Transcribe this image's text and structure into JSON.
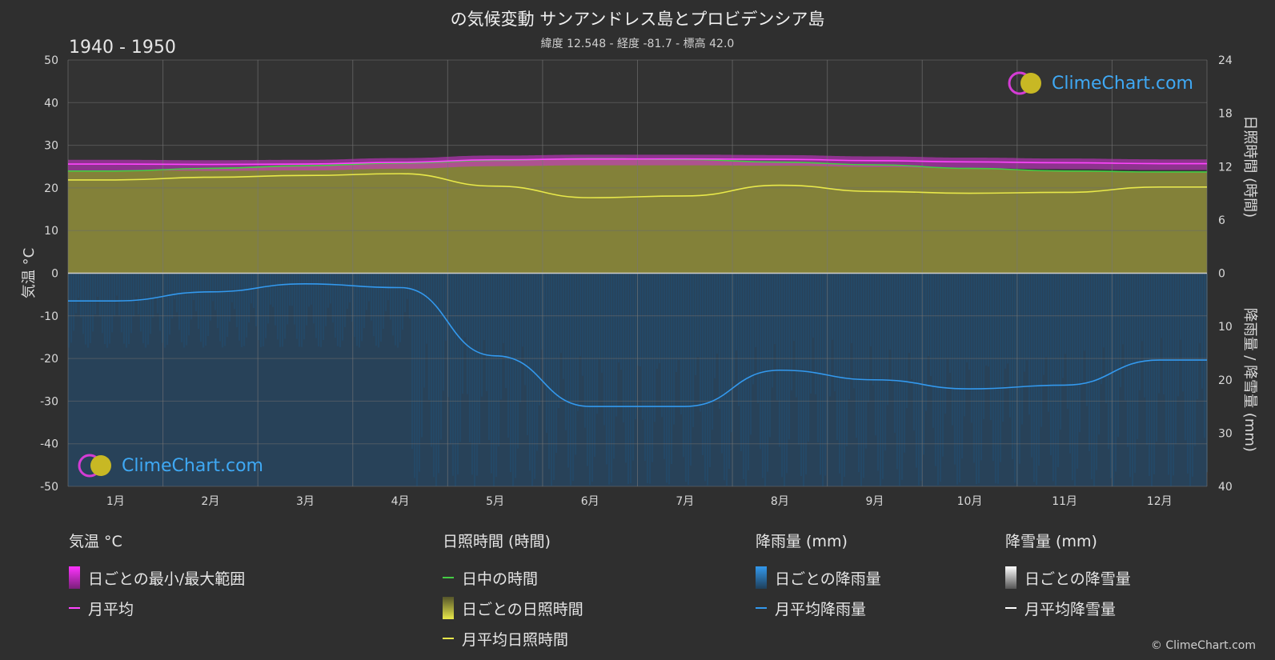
{
  "header": {
    "title": "の気候変動 サンアンドレス島とプロビデンシア島",
    "subtitle": "緯度 12.548 - 経度 -81.7 - 標高 42.0",
    "period": "1940 - 1950"
  },
  "branding": {
    "logo_text": "ClimeChart.com",
    "copyright": "© ClimeChart.com"
  },
  "chart_data": {
    "type": "area",
    "categories": [
      "1月",
      "2月",
      "3月",
      "4月",
      "5月",
      "6月",
      "7月",
      "8月",
      "9月",
      "10月",
      "11月",
      "12月"
    ],
    "axes": {
      "left": {
        "label": "気温 °C",
        "min": -50,
        "max": 50,
        "ticks": [
          50,
          40,
          30,
          20,
          10,
          0,
          -10,
          -20,
          -30,
          -40,
          -50
        ]
      },
      "right_top": {
        "label": "日照時間 (時間)",
        "min": 0,
        "max": 24,
        "ticks": [
          24,
          18,
          12,
          6,
          0
        ]
      },
      "right_bottom": {
        "label": "降雨量 / 降雪量 (mm)",
        "min": 0,
        "max": 40,
        "ticks": [
          0,
          10,
          20,
          30,
          40
        ]
      }
    },
    "grid": true,
    "series": [
      {
        "name": "日中の時間",
        "unit": "hours",
        "color": "#44cc44",
        "values": [
          11.5,
          11.8,
          12.1,
          12.4,
          12.7,
          12.9,
          12.8,
          12.5,
          12.2,
          11.8,
          11.5,
          11.4
        ]
      },
      {
        "name": "月平均日照時間",
        "unit": "hours",
        "color": "#e8e84a",
        "values": [
          10.5,
          10.8,
          11.0,
          11.2,
          9.8,
          8.5,
          8.7,
          9.9,
          9.2,
          9.0,
          9.1,
          9.7
        ]
      },
      {
        "name": "月平均",
        "unit": "°C",
        "color": "#ff44ff",
        "values": [
          25.6,
          25.5,
          25.6,
          26.0,
          26.6,
          26.8,
          26.8,
          26.7,
          26.4,
          26.1,
          25.9,
          25.7
        ]
      },
      {
        "name": "月平均降雨量",
        "unit": "mm",
        "color": "#3399ee",
        "values": [
          5.2,
          3.5,
          2.0,
          2.7,
          15.5,
          25.0,
          25.0,
          18.2,
          20.0,
          21.7,
          21.0,
          16.3
        ]
      },
      {
        "name": "月平均降雪量",
        "unit": "mm",
        "color": "#ffffff",
        "values": [
          0,
          0,
          0,
          0,
          0,
          0,
          0,
          0,
          0,
          0,
          0,
          0
        ]
      }
    ]
  },
  "legend": {
    "temp": {
      "header": "気温 °C",
      "range": "日ごとの最小/最大範囲",
      "avg": "月平均"
    },
    "sun": {
      "header": "日照時間 (時間)",
      "daylight": "日中の時間",
      "daily": "日ごとの日照時間",
      "avg": "月平均日照時間"
    },
    "rain": {
      "header": "降雨量 (mm)",
      "daily": "日ごとの降雨量",
      "avg": "月平均降雨量"
    },
    "snow": {
      "header": "降雪量 (mm)",
      "daily": "日ごとの降雪量",
      "avg": "月平均降雪量"
    }
  },
  "colors": {
    "background": "#2f2f2f",
    "sunshine_fill": "#8c8a3a",
    "rain_fill": "#1f4f78",
    "temp_band": "#cc33cc"
  }
}
